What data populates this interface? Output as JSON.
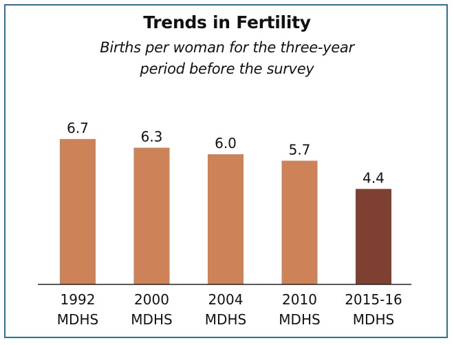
{
  "chart_data": {
    "type": "bar",
    "title": "Trends in Fertility",
    "subtitle_lines": [
      "Births per woman for the three-year",
      "period before the survey"
    ],
    "categories": [
      [
        "1992",
        "MDHS"
      ],
      [
        "2000",
        "MDHS"
      ],
      [
        "2004",
        "MDHS"
      ],
      [
        "2010",
        "MDHS"
      ],
      [
        "2015-16",
        "MDHS"
      ]
    ],
    "values": [
      6.7,
      6.3,
      6.0,
      5.7,
      4.4
    ],
    "value_labels": [
      "6.7",
      "6.3",
      "6.0",
      "5.7",
      "4.4"
    ],
    "ylim": [
      0,
      9.3
    ],
    "grid": false,
    "legend": "none",
    "colors": [
      "#cd8257",
      "#cd8257",
      "#cd8257",
      "#cd8257",
      "#7e4030"
    ],
    "axis_color": "#222222"
  }
}
